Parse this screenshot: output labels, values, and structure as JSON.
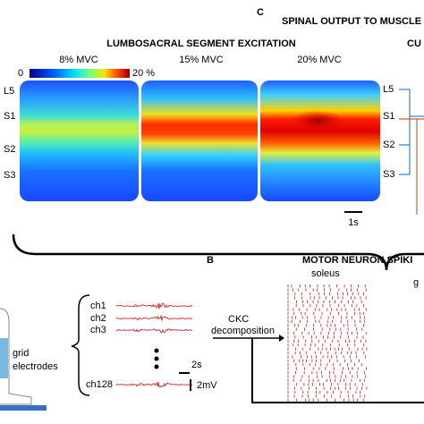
{
  "panel_c": {
    "label": "C",
    "title": "SPINAL OUTPUT TO MUSCLE",
    "heatmap_title": "LUMBOSACRAL SEGMENT EXCITATION",
    "colorbar": {
      "min_label": "0",
      "max_label": "20 %"
    },
    "heatmaps": [
      "8% MVC",
      "15% MVC",
      "20% MVC"
    ],
    "segments": [
      "L5",
      "S1",
      "S2",
      "S3"
    ],
    "right_title": "CU",
    "right_segments": [
      "L5",
      "S1",
      "S2",
      "S3"
    ],
    "scale_bar": "1s"
  },
  "panel_b": {
    "label": "B",
    "title": "MOTOR NEURON SPIKI",
    "muscles": [
      "soleus",
      "g"
    ],
    "method": [
      "CKC",
      "decomposition"
    ],
    "channels": [
      "ch1",
      "ch2",
      "ch3",
      "ch128"
    ],
    "time_scale": "2s",
    "amp_scale": "2mV",
    "electrode_label": [
      "grid",
      "electrodes"
    ]
  }
}
